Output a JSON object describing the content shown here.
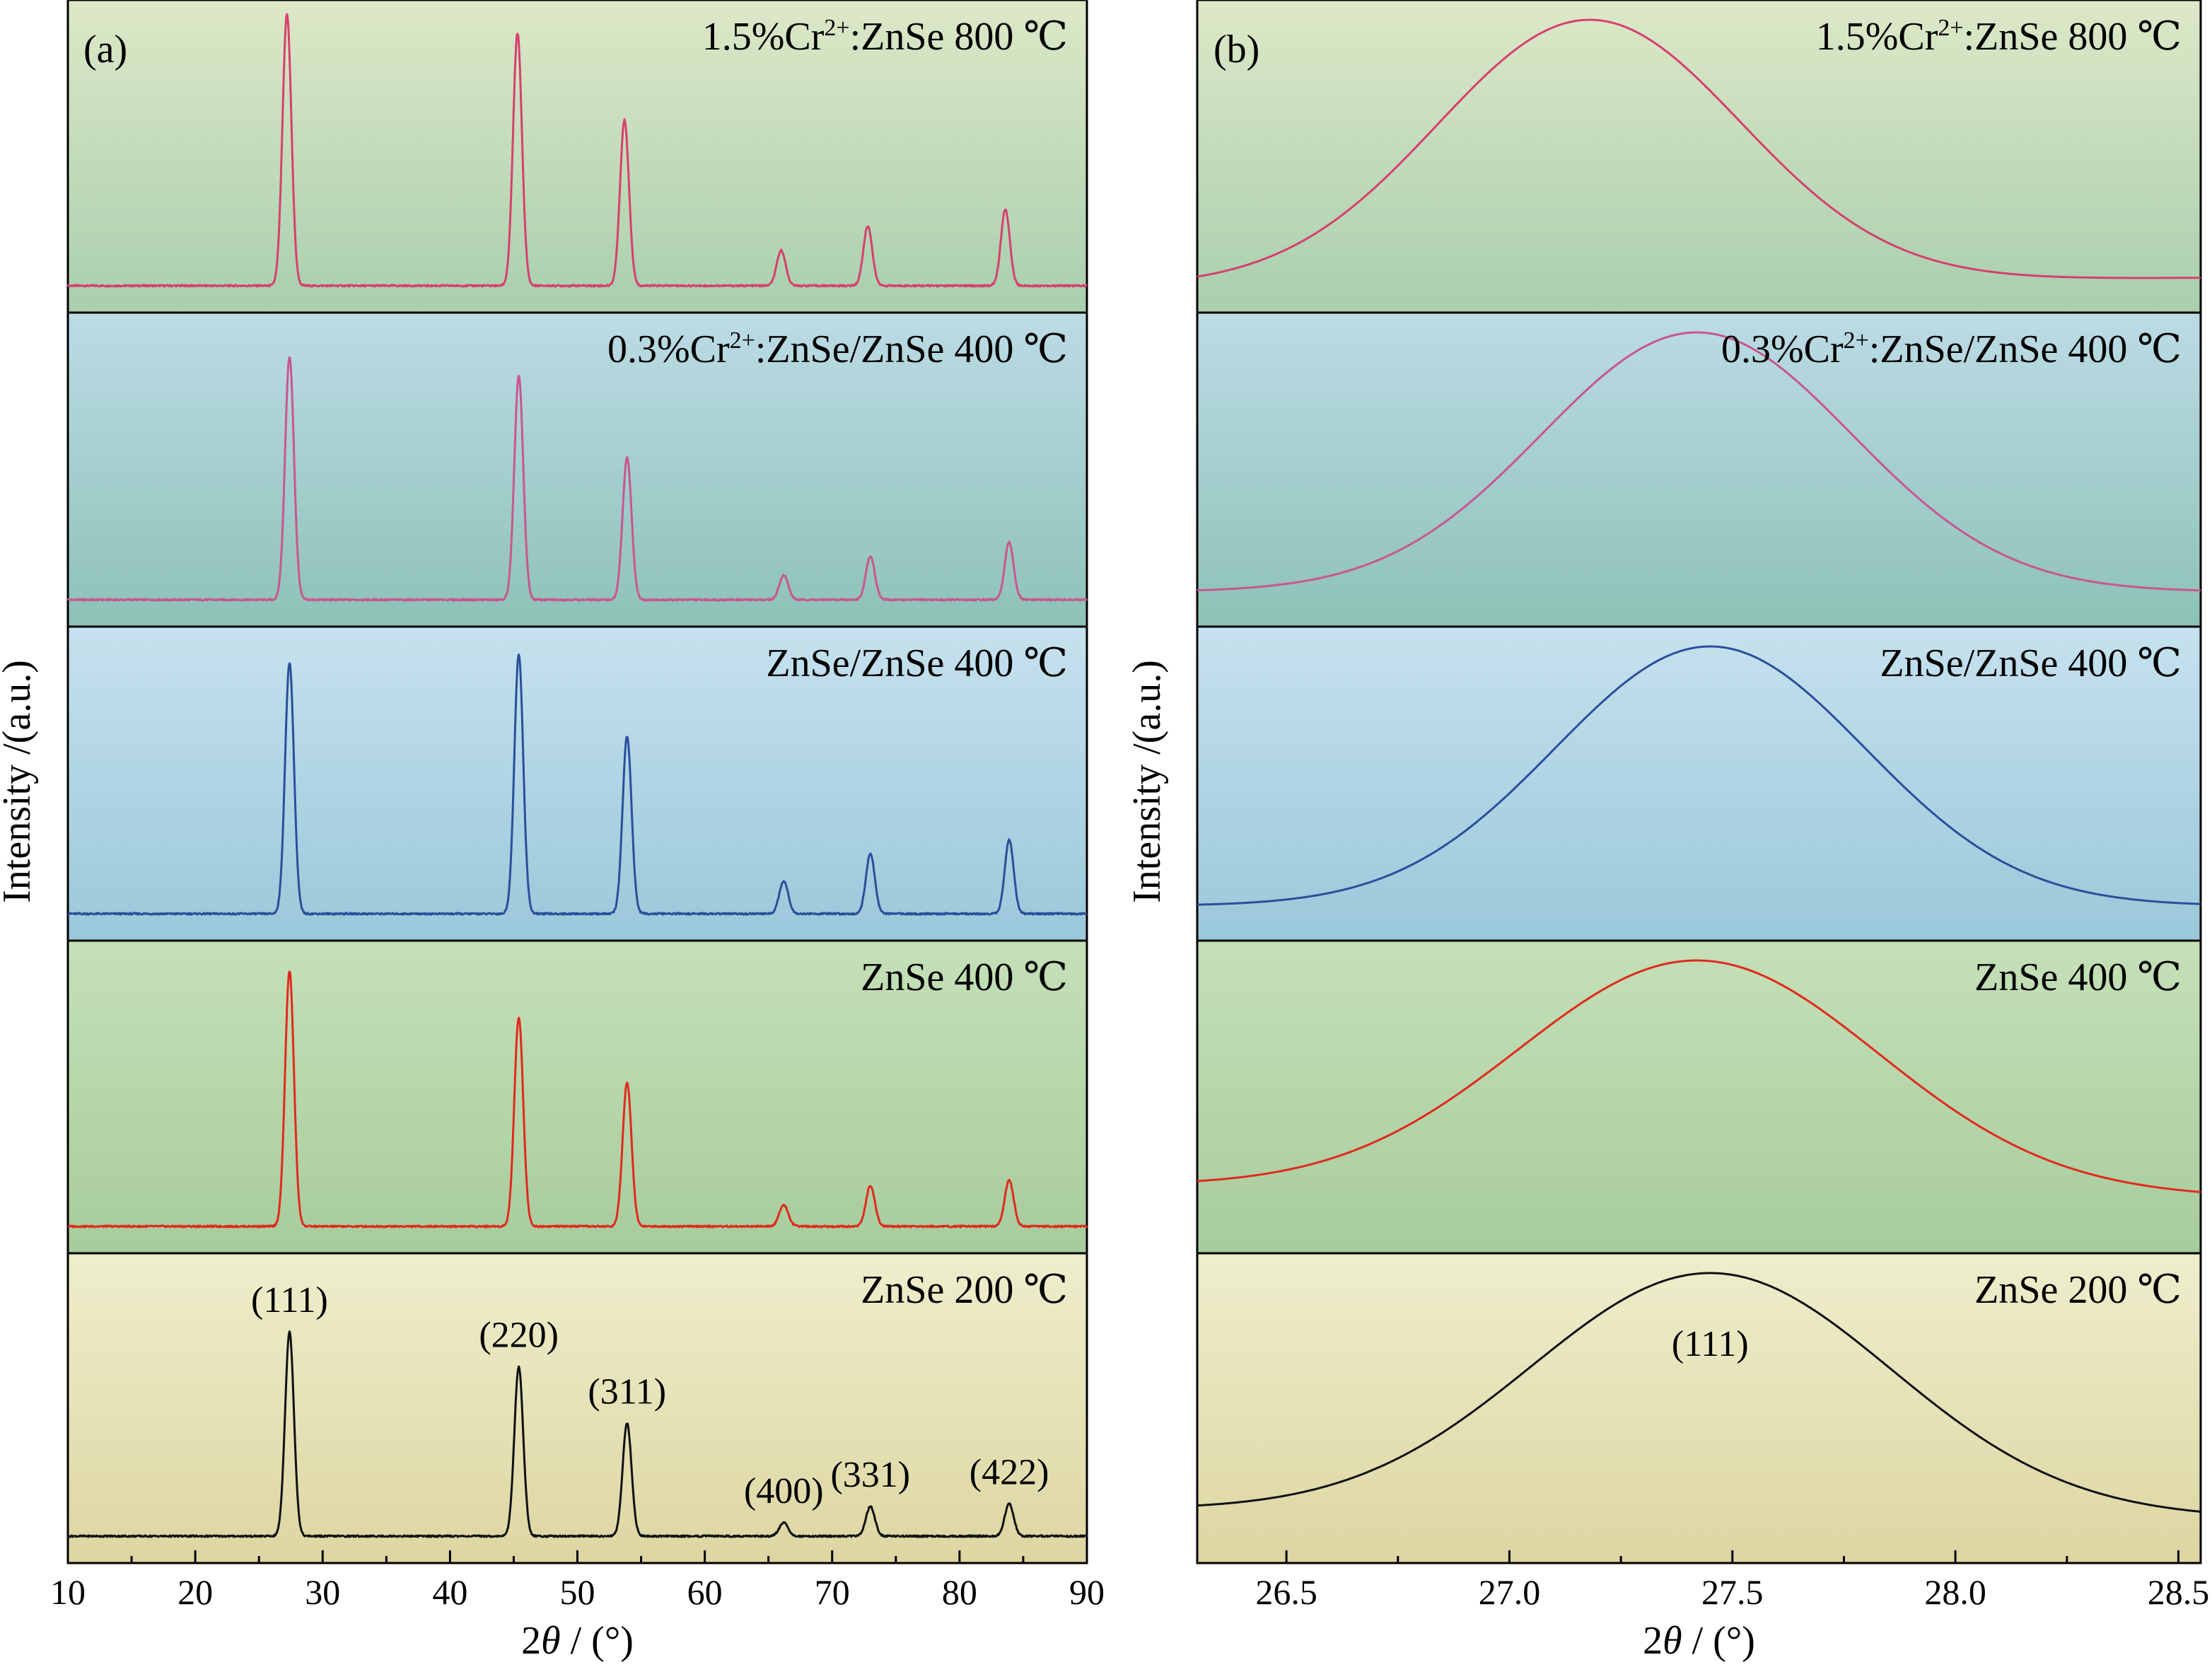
{
  "chart_data": [
    {
      "type": "line",
      "panel_label": "(a)",
      "xlabel_prefix": "2",
      "xlabel_symbol": "θ",
      "xlabel_suffix": " / (°)",
      "ylabel": "Intensity /(a.u.)",
      "xlim": [
        10,
        90
      ],
      "xticks": [
        10,
        20,
        30,
        40,
        50,
        60,
        70,
        80,
        90
      ],
      "xtick_labels": [
        "10",
        "20",
        "30",
        "40",
        "50",
        "60",
        "70",
        "80",
        "90"
      ],
      "grid": false,
      "series": [
        {
          "name_parts": [
            "1.5%Cr",
            "2+",
            ":ZnSe 800 ℃"
          ],
          "color": "#d6406e",
          "background_top": "#dde8c7",
          "background_bottom": "#a8cfae",
          "peaks": [
            {
              "x": 27.2,
              "height": 1.0
            },
            {
              "x": 45.3,
              "height": 0.93
            },
            {
              "x": 53.7,
              "height": 0.61
            },
            {
              "x": 66.0,
              "height": 0.13
            },
            {
              "x": 72.8,
              "height": 0.22
            },
            {
              "x": 83.6,
              "height": 0.28
            }
          ],
          "baseline": 0.0
        },
        {
          "name_parts": [
            "0.3%Cr",
            "2+",
            ":ZnSe/ZnSe 400 ℃"
          ],
          "color": "#c8578f",
          "background_top": "#bcdbe6",
          "background_bottom": "#8dc2b6",
          "peaks": [
            {
              "x": 27.4,
              "height": 0.89
            },
            {
              "x": 45.4,
              "height": 0.82
            },
            {
              "x": 53.9,
              "height": 0.52
            },
            {
              "x": 66.2,
              "height": 0.09
            },
            {
              "x": 73.0,
              "height": 0.16
            },
            {
              "x": 83.9,
              "height": 0.21
            }
          ],
          "baseline": 0.0
        },
        {
          "name_parts": [
            "ZnSe/ZnSe 400 ℃"
          ],
          "color": "#2a4f9a",
          "background_top": "#c6e1ee",
          "background_bottom": "#9ac8da",
          "peaks": [
            {
              "x": 27.4,
              "height": 0.92
            },
            {
              "x": 45.4,
              "height": 0.95
            },
            {
              "x": 53.9,
              "height": 0.65
            },
            {
              "x": 66.2,
              "height": 0.12
            },
            {
              "x": 73.0,
              "height": 0.22
            },
            {
              "x": 83.9,
              "height": 0.27
            }
          ],
          "baseline": 0.0
        },
        {
          "name_parts": [
            "ZnSe 400 ℃"
          ],
          "color": "#e02a1f",
          "background_top": "#c5e0b8",
          "background_bottom": "#a7cc9c",
          "peaks": [
            {
              "x": 27.4,
              "height": 0.94
            },
            {
              "x": 45.4,
              "height": 0.77
            },
            {
              "x": 53.9,
              "height": 0.53
            },
            {
              "x": 66.2,
              "height": 0.08
            },
            {
              "x": 73.0,
              "height": 0.15
            },
            {
              "x": 83.9,
              "height": 0.17
            }
          ],
          "baseline": 0.0
        },
        {
          "name_parts": [
            "ZnSe 200 ℃"
          ],
          "color": "#111111",
          "background_top": "#eeeecc",
          "background_bottom": "#ddd6a2",
          "peaks": [
            {
              "x": 27.4,
              "height": 0.76
            },
            {
              "x": 45.4,
              "height": 0.63
            },
            {
              "x": 53.9,
              "height": 0.42
            },
            {
              "x": 66.2,
              "height": 0.05
            },
            {
              "x": 73.0,
              "height": 0.11
            },
            {
              "x": 83.9,
              "height": 0.12
            }
          ],
          "baseline": 0.0,
          "annotations": [
            {
              "text": "(111)",
              "x": 27.4
            },
            {
              "text": "(220)",
              "x": 45.4
            },
            {
              "text": "(311)",
              "x": 53.9
            },
            {
              "text": "(400)",
              "x": 66.2
            },
            {
              "text": "(331)",
              "x": 73.0
            },
            {
              "text": "(422)",
              "x": 83.9
            }
          ]
        }
      ]
    },
    {
      "type": "line",
      "panel_label": "(b)",
      "xlabel_prefix": "2",
      "xlabel_symbol": "θ",
      "xlabel_suffix": " / (°)",
      "ylabel": "Intensity /(a.u.)",
      "xlim": [
        26.3,
        28.55
      ],
      "xticks": [
        26.5,
        27.0,
        27.5,
        28.0,
        28.5
      ],
      "xtick_labels": [
        "26.5",
        "27.0",
        "27.5",
        "28.0",
        "28.5"
      ],
      "grid": false,
      "series": [
        {
          "name_parts": [
            "1.5%Cr",
            "2+",
            ":ZnSe 800 ℃"
          ],
          "color": "#d6406e",
          "center": 27.18,
          "fwhm": 0.8,
          "start": 0.02,
          "end": 0.05
        },
        {
          "name_parts": [
            "0.3%Cr",
            "2+",
            ":ZnSe/ZnSe 400 ℃"
          ],
          "color": "#c8578f",
          "center": 27.42,
          "fwhm": 0.82,
          "start": 0.05,
          "end": 0.05
        },
        {
          "name_parts": [
            "ZnSe/ZnSe 400 ℃"
          ],
          "color": "#2a4f9a",
          "center": 27.45,
          "fwhm": 0.82,
          "start": 0.05,
          "end": 0.05
        },
        {
          "name_parts": [
            "ZnSe 400 ℃"
          ],
          "color": "#e02a1f",
          "center": 27.42,
          "fwhm": 0.95,
          "start": 0.17,
          "end": 0.13
        },
        {
          "name_parts": [
            "ZnSe 200 ℃"
          ],
          "color": "#111111",
          "center": 27.45,
          "fwhm": 0.95,
          "start": 0.12,
          "end": 0.09,
          "annotations": [
            {
              "text": "(111)",
              "x": 27.45
            }
          ]
        }
      ]
    }
  ]
}
